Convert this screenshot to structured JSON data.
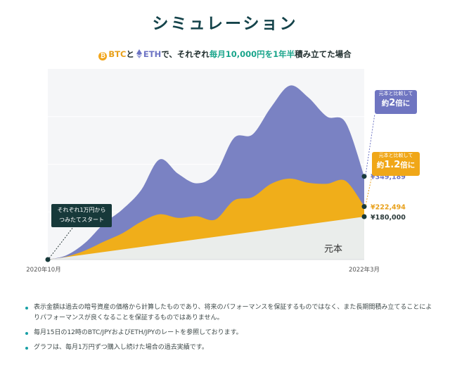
{
  "title": "シミュレーション",
  "subtitle": {
    "coin1": "BTC",
    "and": "と",
    "coin2": "ETH",
    "mid": "で、それぞれ",
    "highlight": "毎月10,000円を1年半",
    "end": "積み立てた場合"
  },
  "colors": {
    "combined": "#7a82c3",
    "btc": "#f0ae1a",
    "principal": "#eaedeb",
    "start_box": "#17393a",
    "accent": "#1aa58b"
  },
  "chart_data": {
    "type": "area",
    "x": [
      "2020-10",
      "2020-11",
      "2020-12",
      "2021-01",
      "2021-02",
      "2021-03",
      "2021-04",
      "2021-05",
      "2021-06",
      "2021-07",
      "2021-08",
      "2021-09",
      "2021-10",
      "2021-11",
      "2021-12",
      "2022-01",
      "2022-02",
      "2022-03"
    ],
    "x_tick_labels": {
      "first": "2020年10月",
      "last": "2022年3月"
    },
    "series": [
      {
        "name": "元本",
        "values": [
          0,
          10000,
          20000,
          30000,
          40000,
          50000,
          60000,
          70000,
          80000,
          90000,
          100000,
          110000,
          120000,
          130000,
          140000,
          150000,
          160000,
          180000
        ]
      },
      {
        "values": [
          0,
          12000,
          38000,
          75000,
          110000,
          158000,
          190000,
          175000,
          182000,
          168000,
          248000,
          262000,
          318000,
          340000,
          322000,
          318000,
          330000,
          222494
        ]
      },
      {
        "values": [
          0,
          18000,
          70000,
          150000,
          210000,
          290000,
          420000,
          360000,
          320000,
          360000,
          510000,
          525000,
          640000,
          730000,
          680000,
          600000,
          575000,
          349189
        ]
      }
    ],
    "end_values": {
      "combined": "¥349,189",
      "btc": "¥222,494",
      "principal": "¥180,000"
    },
    "area_label": "元本",
    "ylim": [
      0,
      800000
    ],
    "grid": true,
    "callouts": [
      {
        "small": "元本と比較して",
        "prefix": "約",
        "num": "2",
        "suffix": "倍に"
      },
      {
        "small": "元本と比較して",
        "prefix": "約",
        "num": "1.2",
        "suffix": "倍に"
      }
    ],
    "start_annotation": [
      "それぞれ1万円から",
      "つみたてスタート"
    ]
  },
  "notes": [
    "表示金額は過去の暗号資産の価格から計算したものであり、将来のパフォーマンスを保証するものではなく、また長期間積み立てることによりパフォーマンスが良くなることを保証するものではありません。",
    "毎月15日の12時のBTC/JPYおよびETH/JPYのレートを参照しております。",
    "グラフは、毎月1万円ずつ購入し続けた場合の過去実績です。"
  ]
}
